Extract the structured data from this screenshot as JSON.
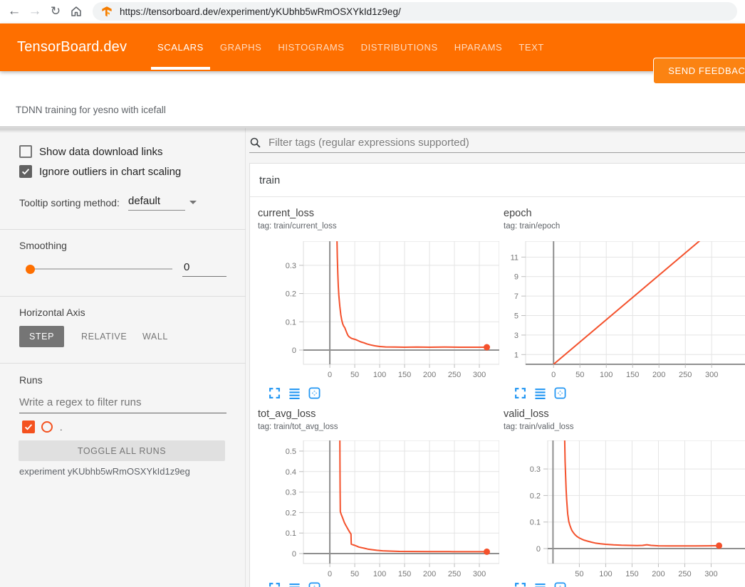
{
  "browser": {
    "url": "https://tensorboard.dev/experiment/yKUbhb5wRmOSXYkId1z9eg/"
  },
  "header": {
    "logo": "TensorBoard.dev",
    "tabs": [
      {
        "label": "SCALARS",
        "active": true
      },
      {
        "label": "GRAPHS",
        "active": false
      },
      {
        "label": "HISTOGRAMS",
        "active": false
      },
      {
        "label": "DISTRIBUTIONS",
        "active": false
      },
      {
        "label": "HPARAMS",
        "active": false
      },
      {
        "label": "TEXT",
        "active": false
      }
    ],
    "feedback_button": "SEND FEEDBACK"
  },
  "experiment_title": "TDNN training for yesno with icefall",
  "sidebar": {
    "show_download": {
      "label": "Show data download links",
      "checked": false
    },
    "ignore_outliers": {
      "label": "Ignore outliers in chart scaling",
      "checked": true
    },
    "tooltip_sorting": {
      "label": "Tooltip sorting method:",
      "value": "default"
    },
    "smoothing": {
      "label": "Smoothing",
      "value": "0"
    },
    "horizontal_axis": {
      "label": "Horizontal Axis",
      "options": [
        "STEP",
        "RELATIVE",
        "WALL"
      ],
      "selected": "STEP"
    },
    "runs": {
      "label": "Runs",
      "filter_placeholder": "Write a regex to filter runs",
      "run_name": ".",
      "run_checked": true,
      "run_color": "#f4512c",
      "toggle_button": "TOGGLE ALL RUNS",
      "experiment_label": "experiment yKUbhb5wRmOSXYkId1z9eg"
    }
  },
  "main": {
    "filter_placeholder": "Filter tags (regular expressions supported)",
    "section": "train"
  },
  "colors": {
    "header_bg": "#fe6f00",
    "run_color": "#f4512c",
    "chart_icon_blue": "#2196f3",
    "checkbox_checked": "#616161",
    "runs_checkbox": "#f4511e"
  },
  "chart_data": [
    {
      "type": "line",
      "title": "current_loss",
      "tag": "tag: train/current_loss",
      "xlabel": "step",
      "x_ticks": [
        0,
        50,
        100,
        150,
        200,
        250,
        300
      ],
      "y_ticks": [
        0,
        0.1,
        0.2,
        0.3
      ],
      "xlim": [
        -53,
        340
      ],
      "ylim": [
        -0.0504,
        0.3853
      ],
      "grid": true,
      "series": [
        {
          "name": ".",
          "color": "#f4512c",
          "points": [
            [
              14,
              0.42
            ],
            [
              15,
              0.33
            ],
            [
              16,
              0.27
            ],
            [
              17,
              0.225
            ],
            [
              18,
              0.195
            ],
            [
              20,
              0.155
            ],
            [
              22,
              0.125
            ],
            [
              24,
              0.105
            ],
            [
              26,
              0.092
            ],
            [
              28,
              0.084
            ],
            [
              30,
              0.079
            ],
            [
              32,
              0.07
            ],
            [
              34,
              0.061
            ],
            [
              36,
              0.053
            ],
            [
              38,
              0.048
            ],
            [
              41,
              0.044
            ],
            [
              44,
              0.041
            ],
            [
              48,
              0.039
            ],
            [
              52,
              0.037
            ],
            [
              57,
              0.033
            ],
            [
              62,
              0.029
            ],
            [
              68,
              0.026
            ],
            [
              74,
              0.022
            ],
            [
              82,
              0.018
            ],
            [
              90,
              0.015
            ],
            [
              100,
              0.0125
            ],
            [
              112,
              0.011
            ],
            [
              130,
              0.0105
            ],
            [
              150,
              0.01
            ],
            [
              175,
              0.0105
            ],
            [
              200,
              0.01
            ],
            [
              230,
              0.0105
            ],
            [
              260,
              0.01
            ],
            [
              290,
              0.01
            ],
            [
              315,
              0.01
            ]
          ]
        }
      ],
      "end_dot": [
        315,
        0.01
      ]
    },
    {
      "type": "line",
      "title": "epoch",
      "tag": "tag: train/epoch",
      "xlabel": "step",
      "x_ticks": [
        0,
        50,
        100,
        150,
        200,
        250,
        300
      ],
      "y_ticks": [
        1,
        3,
        5,
        7,
        9,
        11
      ],
      "xlim": [
        -53,
        370
      ],
      "ylim": [
        0,
        12.63
      ],
      "grid": true,
      "series": [
        {
          "name": ".",
          "color": "#f4512c",
          "points": [
            [
              0,
              0
            ],
            [
              315,
              14.4
            ]
          ]
        }
      ],
      "end_dot": null
    },
    {
      "type": "line",
      "title": "tot_avg_loss",
      "tag": "tag: train/tot_avg_loss",
      "xlabel": "step",
      "x_ticks": [
        0,
        50,
        100,
        150,
        200,
        250,
        300
      ],
      "y_ticks": [
        0,
        0.1,
        0.2,
        0.3,
        0.4,
        0.5
      ],
      "xlim": [
        -53,
        340
      ],
      "ylim": [
        -0.0486,
        0.552
      ],
      "grid": true,
      "series": [
        {
          "name": ".",
          "color": "#f4512c",
          "points": [
            [
              20,
              0.62
            ],
            [
              20.3,
              0.45
            ],
            [
              20.6,
              0.32
            ],
            [
              21,
              0.205
            ],
            [
              23,
              0.19
            ],
            [
              26,
              0.172
            ],
            [
              29,
              0.152
            ],
            [
              32,
              0.138
            ],
            [
              35,
              0.125
            ],
            [
              38,
              0.112
            ],
            [
              41,
              0.1
            ],
            [
              42.5,
              0.095
            ],
            [
              43,
              0.046
            ],
            [
              46,
              0.043
            ],
            [
              50,
              0.04
            ],
            [
              54,
              0.036
            ],
            [
              58,
              0.032
            ],
            [
              63,
              0.029
            ],
            [
              69,
              0.026
            ],
            [
              76,
              0.022
            ],
            [
              84,
              0.019
            ],
            [
              94,
              0.016
            ],
            [
              106,
              0.0135
            ],
            [
              120,
              0.012
            ],
            [
              140,
              0.0105
            ],
            [
              165,
              0.01
            ],
            [
              200,
              0.0095
            ],
            [
              240,
              0.0095
            ],
            [
              280,
              0.009
            ],
            [
              315,
              0.009
            ]
          ]
        }
      ],
      "end_dot": [
        315,
        0.009
      ]
    },
    {
      "type": "line",
      "title": "valid_loss",
      "tag": "tag: train/valid_loss",
      "xlabel": "step",
      "x_ticks": [
        50,
        100,
        150,
        200,
        250,
        300
      ],
      "y_ticks": [
        0,
        0.1,
        0.2,
        0.3
      ],
      "xlim": [
        -10,
        371
      ],
      "ylim": [
        -0.0563,
        0.4075
      ],
      "grid": true,
      "series": [
        {
          "name": ".",
          "color": "#f4512c",
          "points": [
            [
              22,
              0.43
            ],
            [
              23,
              0.33
            ],
            [
              24,
              0.27
            ],
            [
              25,
              0.22
            ],
            [
              26,
              0.185
            ],
            [
              27,
              0.155
            ],
            [
              28,
              0.13
            ],
            [
              29,
              0.115
            ],
            [
              30,
              0.102
            ],
            [
              32,
              0.088
            ],
            [
              34,
              0.077
            ],
            [
              36,
              0.068
            ],
            [
              39,
              0.059
            ],
            [
              42,
              0.052
            ],
            [
              46,
              0.045
            ],
            [
              50,
              0.04
            ],
            [
              55,
              0.035
            ],
            [
              60,
              0.031
            ],
            [
              66,
              0.028
            ],
            [
              73,
              0.024
            ],
            [
              80,
              0.021
            ],
            [
              90,
              0.018
            ],
            [
              100,
              0.016
            ],
            [
              115,
              0.014
            ],
            [
              130,
              0.0125
            ],
            [
              145,
              0.012
            ],
            [
              160,
              0.0115
            ],
            [
              170,
              0.012
            ],
            [
              178,
              0.0145
            ],
            [
              186,
              0.012
            ],
            [
              200,
              0.0105
            ],
            [
              220,
              0.01
            ],
            [
              245,
              0.01
            ],
            [
              270,
              0.01
            ],
            [
              295,
              0.0105
            ],
            [
              315,
              0.011
            ]
          ]
        }
      ],
      "end_dot": [
        315,
        0.011
      ]
    }
  ]
}
